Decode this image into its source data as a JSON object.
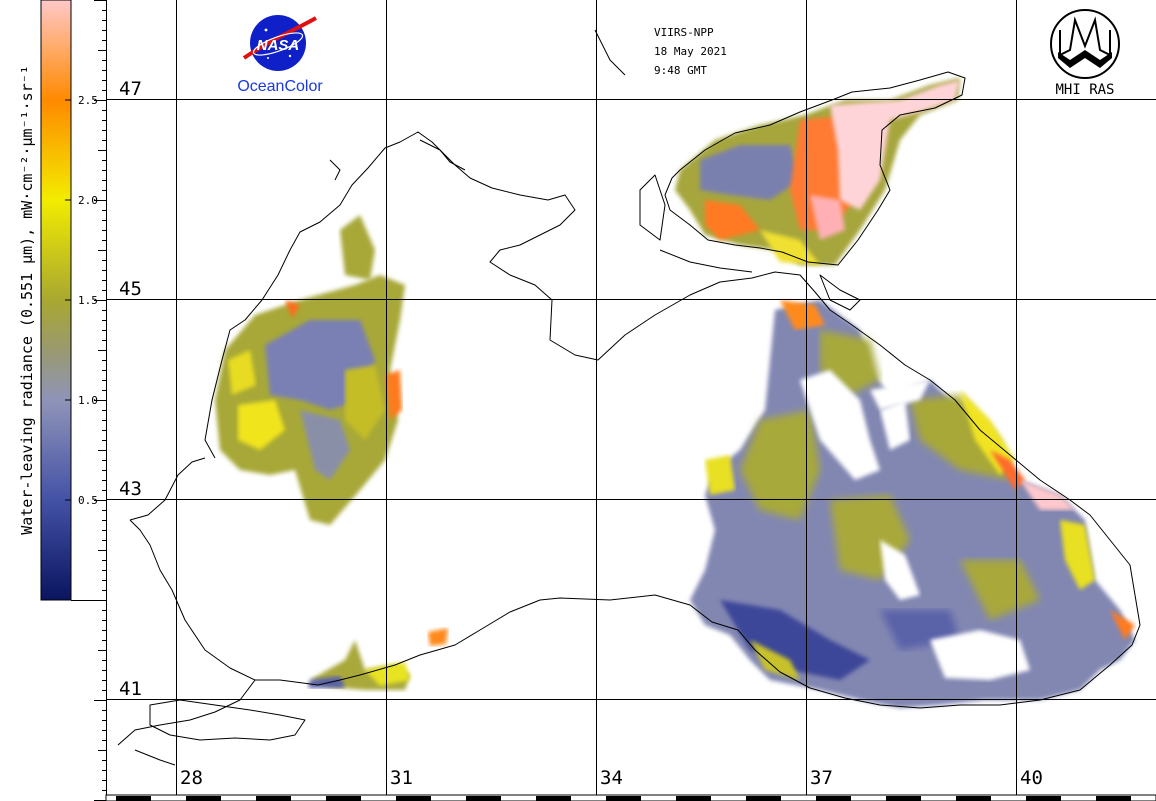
{
  "header": {
    "sensor": "VIIRS-NPP",
    "date": "18 May 2021",
    "time": "9:48 GMT"
  },
  "logos": {
    "nasa": {
      "word": "NASA",
      "caption": "OceanColor"
    },
    "institute": {
      "caption": "MHI RAS"
    }
  },
  "colorbar": {
    "label": "Water-leaving radiance (0.551 µm), mW·cm⁻²·µm⁻¹·sr⁻¹",
    "min": 0.0,
    "max": 3.0,
    "ticks": [
      "0.5",
      "1.0",
      "1.5",
      "2.0",
      "2.5"
    ],
    "tick_values": [
      0.5,
      1.0,
      1.5,
      2.0,
      2.5
    ],
    "stops": [
      {
        "value": 0.0,
        "color": "#0a1560"
      },
      {
        "value": 0.5,
        "color": "#4452a6"
      },
      {
        "value": 1.0,
        "color": "#8f94b8"
      },
      {
        "value": 1.25,
        "color": "#9a9a70"
      },
      {
        "value": 1.5,
        "color": "#a8a830"
      },
      {
        "value": 2.0,
        "color": "#f2ec00"
      },
      {
        "value": 2.5,
        "color": "#ff8a00"
      },
      {
        "value": 3.0,
        "color": "#ffc8c8"
      }
    ]
  },
  "map": {
    "lat_labels": [
      "47",
      "45",
      "43",
      "41"
    ],
    "lon_labels": [
      "28",
      "31",
      "34",
      "37",
      "40"
    ],
    "colors": {
      "low": "#3d469e",
      "mid": "#7a80b2",
      "olive": "#a6a634",
      "yellow": "#e8e21c",
      "orange": "#ff6a1a",
      "pink": "#ffd0d4",
      "coast": "#000000"
    }
  }
}
